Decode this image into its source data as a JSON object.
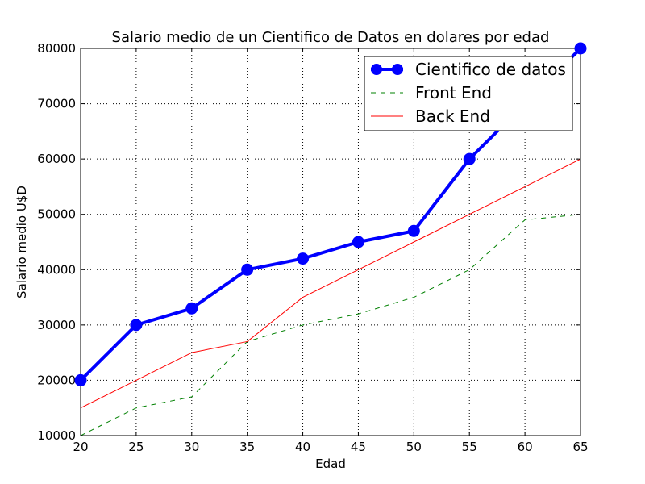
{
  "chart_data": {
    "type": "line",
    "title": "Salario medio de un Cientifico de Datos en dolares por edad",
    "xlabel": "Edad",
    "ylabel": "Salario medio U$D",
    "xlim": [
      20,
      65
    ],
    "ylim": [
      10000,
      80000
    ],
    "x_ticks": [
      20,
      25,
      30,
      35,
      40,
      45,
      50,
      55,
      60,
      65
    ],
    "y_ticks": [
      10000,
      20000,
      30000,
      40000,
      50000,
      60000,
      70000,
      80000
    ],
    "grid": true,
    "legend_position": "top-right",
    "x": [
      20,
      25,
      30,
      35,
      40,
      45,
      50,
      55,
      60,
      65
    ],
    "series": [
      {
        "name": "Cientifico de datos",
        "values": [
          20000,
          30000,
          33000,
          40000,
          42000,
          45000,
          47000,
          60000,
          70000,
          80000
        ],
        "color": "#0000ff",
        "style": "solid-thick-markers"
      },
      {
        "name": "Front End",
        "values": [
          10000,
          15000,
          17000,
          27000,
          30000,
          32000,
          35000,
          40000,
          49000,
          50000
        ],
        "color": "#008000",
        "style": "dashed"
      },
      {
        "name": "Back End",
        "values": [
          15000,
          20000,
          25000,
          27000,
          35000,
          40000,
          45000,
          50000,
          55000,
          60000
        ],
        "color": "#ff0000",
        "style": "solid"
      }
    ]
  }
}
